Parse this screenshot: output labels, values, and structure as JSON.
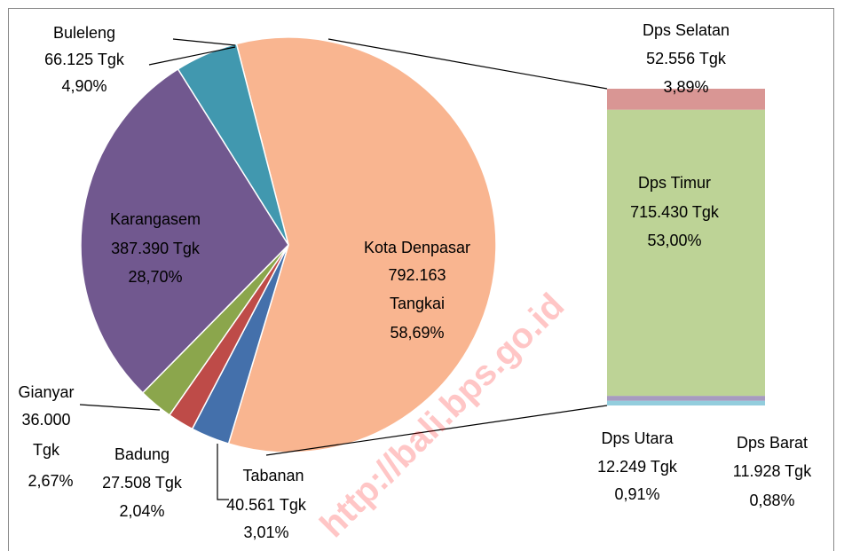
{
  "chart_data": [
    {
      "type": "pie",
      "categories": [
        "Kota Denpasar",
        "Tabanan",
        "Badung",
        "Gianyar",
        "Karangasem",
        "Buleleng"
      ],
      "values": [
        58.69,
        3.01,
        2.04,
        2.67,
        28.7,
        4.9
      ],
      "value_labels": [
        "58,69%",
        "3,01%",
        "2,04%",
        "2,67%",
        "28,70%",
        "4,90%"
      ],
      "amount_labels": [
        [
          "792.163",
          "Tangkai"
        ],
        [
          "40.561 Tgk"
        ],
        [
          "27.508 Tgk"
        ],
        [
          "36.000",
          "Tgk"
        ],
        [
          "387.390  Tgk"
        ],
        [
          "66.125 Tgk"
        ]
      ],
      "colors": [
        "#F9B590",
        "#4470AB",
        "#BE4B48",
        "#8BA64C",
        "#71588F",
        "#4198AF"
      ],
      "watermark": "http://bali.bps.go.id"
    },
    {
      "type": "bar",
      "categories": [
        "Dps Selatan",
        "Dps Timur",
        "Dps Utara",
        "Dps Barat"
      ],
      "values": [
        3.89,
        53.0,
        0.91,
        0.88
      ],
      "value_labels": [
        "3,89%",
        "53,00%",
        "0,91%",
        "0,88%"
      ],
      "amount_labels": [
        "52.556 Tgk",
        "715.430 Tgk",
        "12.249 Tgk",
        "11.928 Tgk"
      ],
      "colors": [
        "#D99694",
        "#BDD396",
        "#A79BC0",
        "#93CDDD"
      ]
    }
  ]
}
